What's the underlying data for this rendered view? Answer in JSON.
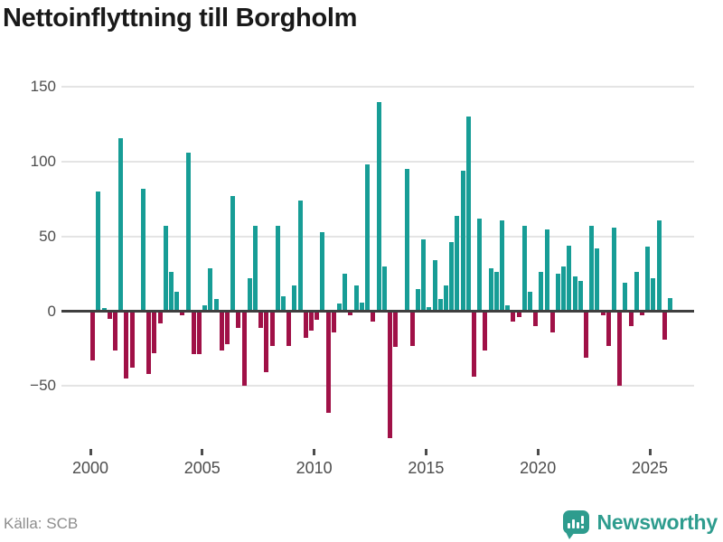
{
  "title": "Nettoinflyttning till Borgholm",
  "source": "Källa: SCB",
  "branding": {
    "name": "Newsworthy",
    "icon": "newsworthy-bubble-chart-icon",
    "color": "#2e9c8e"
  },
  "chart_data": {
    "type": "bar",
    "title": "Nettoinflyttning till Borgholm",
    "frequency": "quarterly",
    "start_period": "2000 Q1",
    "end_period": "2025 Q4",
    "grid": "horizontal",
    "legend": "none",
    "ylim": [
      -90,
      155
    ],
    "y_ticks": [
      150,
      100,
      50,
      0,
      -50
    ],
    "y_tick_labels": [
      "150",
      "100",
      "50",
      "0",
      "−50"
    ],
    "x_tick_years": [
      2000,
      2005,
      2010,
      2015,
      2020,
      2025
    ],
    "x_tick_labels": [
      "2000",
      "2005",
      "2010",
      "2015",
      "2020",
      "2025"
    ],
    "positive_color": "#179d96",
    "negative_color": "#a01147",
    "values": [
      -33,
      80,
      2,
      -5,
      -26,
      116,
      -45,
      -38,
      0,
      82,
      -42,
      -28,
      -8,
      57,
      26,
      13,
      -3,
      106,
      -29,
      -29,
      4,
      29,
      8,
      -26,
      -22,
      77,
      -11,
      -50,
      22,
      57,
      -11,
      -41,
      -23,
      57,
      10,
      -23,
      17,
      74,
      -18,
      -13,
      -6,
      53,
      -68,
      -14,
      5,
      25,
      -3,
      17,
      6,
      98,
      -7,
      140,
      30,
      -85,
      -24,
      1,
      95,
      -23,
      15,
      48,
      3,
      34,
      8,
      17,
      46,
      64,
      94,
      130,
      -44,
      62,
      -26,
      29,
      26,
      61,
      4,
      -7,
      -4,
      57,
      13,
      -10,
      26,
      55,
      -14,
      25,
      30,
      44,
      23,
      20,
      -31,
      57,
      42,
      -3,
      -23,
      56,
      -50,
      19,
      -10,
      26,
      -3,
      43,
      22,
      61,
      -19,
      9
    ]
  }
}
